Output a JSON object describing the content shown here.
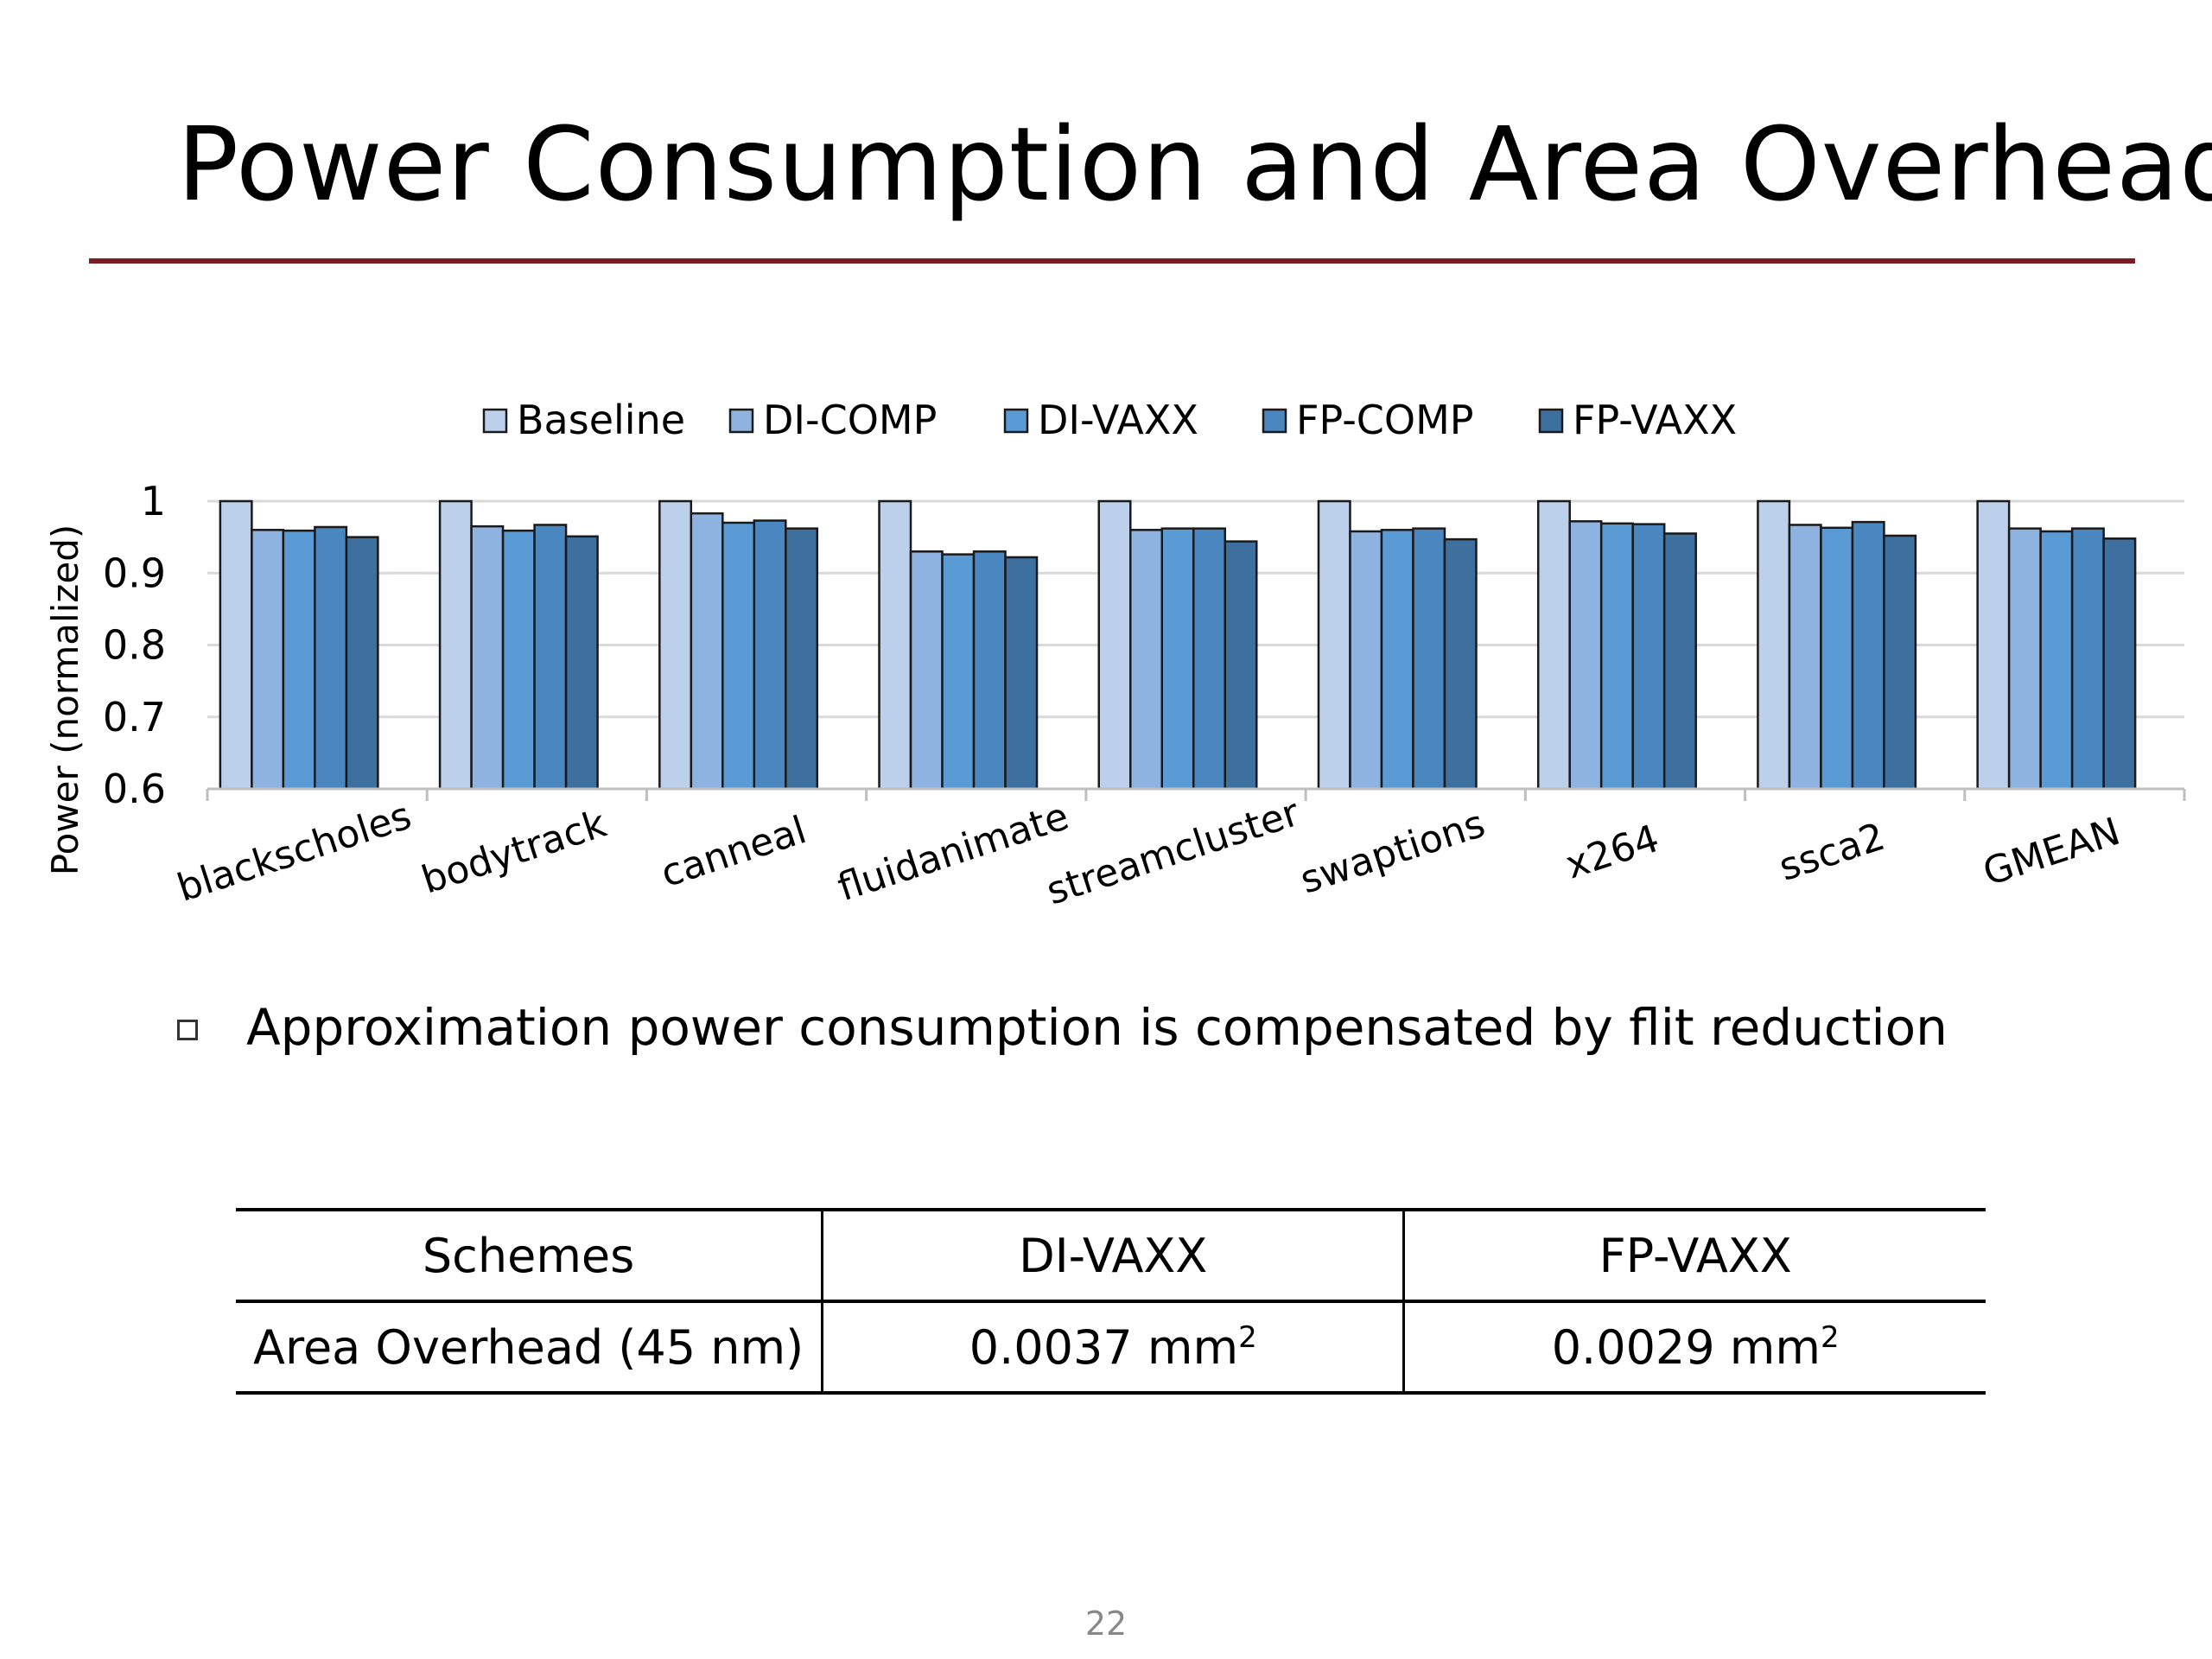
{
  "slide": {
    "title": "Power Consumption and Area Overhead",
    "bullet": "Approximation power consumption is compensated by flit reduction",
    "page_number": "22",
    "accent_color": "#7b1b24"
  },
  "chart_data": {
    "type": "bar",
    "title": "",
    "xlabel": "",
    "ylabel": "Power (normalized)",
    "ylim": [
      0.6,
      1.0
    ],
    "yticks": [
      0.6,
      0.7,
      0.8,
      0.9,
      1.0
    ],
    "ytick_labels": [
      "0.6",
      "0.7",
      "0.8",
      "0.9",
      "1"
    ],
    "grid": true,
    "legend_position": "top",
    "categories": [
      "blackscholes",
      "bodytrack",
      "canneal",
      "fluidanimate",
      "streamcluster",
      "swaptions",
      "x264",
      "ssca2",
      "GMEAN"
    ],
    "series": [
      {
        "name": "Baseline",
        "color": "#bdd0eb",
        "values": [
          1.0,
          1.0,
          1.0,
          1.0,
          1.0,
          1.0,
          1.0,
          1.0,
          1.0
        ]
      },
      {
        "name": "DI-COMP",
        "color": "#8fb3e0",
        "values": [
          0.96,
          0.965,
          0.983,
          0.93,
          0.96,
          0.958,
          0.972,
          0.967,
          0.962
        ]
      },
      {
        "name": "DI-VAXX",
        "color": "#5b9bd5",
        "values": [
          0.959,
          0.959,
          0.97,
          0.926,
          0.962,
          0.96,
          0.969,
          0.963,
          0.958
        ]
      },
      {
        "name": "FP-COMP",
        "color": "#4a86c0",
        "values": [
          0.964,
          0.967,
          0.973,
          0.93,
          0.962,
          0.962,
          0.968,
          0.971,
          0.962
        ]
      },
      {
        "name": "FP-VAXX",
        "color": "#3d6f9f",
        "values": [
          0.95,
          0.951,
          0.962,
          0.922,
          0.944,
          0.947,
          0.955,
          0.952,
          0.948
        ]
      }
    ]
  },
  "table": {
    "headers": [
      "Schemes",
      "DI-VAXX",
      "FP-VAXX"
    ],
    "row_label": "Area Overhead (45 nm)",
    "di_vaxx_value": "0.0037 mm",
    "fp_vaxx_value": "0.0029 mm",
    "unit_exponent": "2"
  }
}
